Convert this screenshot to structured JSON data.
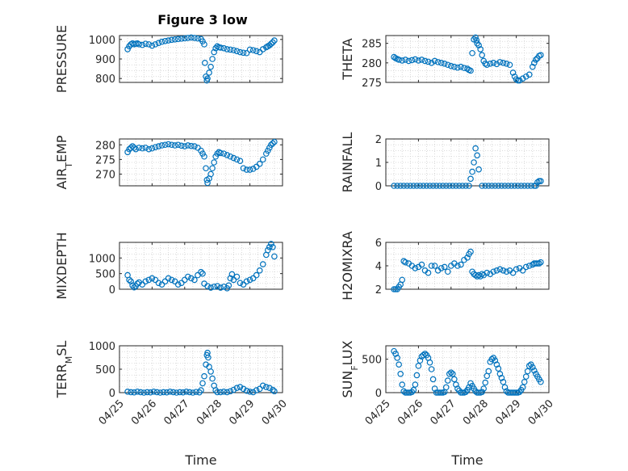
{
  "figure": {
    "title": "Figure 3 low"
  },
  "chart_data": [
    {
      "type": "scatter",
      "ylabel": "PRESSURE",
      "ylim": [
        780,
        1020
      ],
      "yticks": [
        "800",
        "900",
        "1000"
      ],
      "xlim": [
        0,
        5
      ],
      "xticks": [
        "04/25",
        "04/26",
        "04/27",
        "04/28",
        "04/29",
        "04/30"
      ],
      "x": [
        0.25,
        0.3,
        0.35,
        0.4,
        0.45,
        0.5,
        0.55,
        0.6,
        0.7,
        0.8,
        0.9,
        1.0,
        1.1,
        1.2,
        1.3,
        1.4,
        1.5,
        1.6,
        1.7,
        1.8,
        1.9,
        2.0,
        2.1,
        2.2,
        2.3,
        2.4,
        2.5,
        2.55,
        2.6,
        2.62,
        2.65,
        2.68,
        2.7,
        2.75,
        2.8,
        2.85,
        2.9,
        2.95,
        3.0,
        3.05,
        3.1,
        3.2,
        3.3,
        3.4,
        3.5,
        3.6,
        3.7,
        3.8,
        3.9,
        4.0,
        4.1,
        4.2,
        4.3,
        4.4,
        4.5,
        4.55,
        4.6,
        4.65,
        4.7,
        4.75
      ],
      "y": [
        950,
        965,
        975,
        980,
        975,
        978,
        980,
        975,
        972,
        978,
        975,
        968,
        975,
        982,
        988,
        992,
        995,
        998,
        1000,
        1002,
        1004,
        1006,
        1008,
        1010,
        1008,
        1005,
        1002,
        990,
        975,
        880,
        810,
        790,
        800,
        830,
        860,
        900,
        935,
        955,
        965,
        960,
        958,
        955,
        950,
        948,
        945,
        940,
        935,
        932,
        930,
        948,
        945,
        940,
        935,
        950,
        960,
        965,
        970,
        978,
        985,
        995
      ]
    },
    {
      "type": "scatter",
      "ylabel": "THETA",
      "ylim": [
        275,
        287
      ],
      "yticks": [
        "275",
        "280",
        "285"
      ],
      "xlim": [
        0,
        5
      ],
      "xticks": [
        "04/25",
        "04/26",
        "04/27",
        "04/28",
        "04/29",
        "04/30"
      ],
      "x": [
        0.25,
        0.3,
        0.35,
        0.4,
        0.5,
        0.6,
        0.7,
        0.8,
        0.9,
        1.0,
        1.1,
        1.2,
        1.3,
        1.4,
        1.5,
        1.6,
        1.7,
        1.8,
        1.9,
        2.0,
        2.1,
        2.2,
        2.3,
        2.4,
        2.5,
        2.55,
        2.6,
        2.65,
        2.7,
        2.75,
        2.78,
        2.8,
        2.85,
        2.9,
        2.95,
        3.0,
        3.05,
        3.1,
        3.2,
        3.3,
        3.4,
        3.5,
        3.6,
        3.7,
        3.8,
        3.9,
        3.95,
        4.0,
        4.05,
        4.1,
        4.2,
        4.3,
        4.4,
        4.5,
        4.55,
        4.6,
        4.65,
        4.7,
        4.75
      ],
      "y": [
        281.5,
        281.2,
        281.0,
        280.8,
        280.6,
        280.8,
        280.5,
        280.7,
        280.9,
        280.6,
        280.8,
        280.5,
        280.3,
        280.0,
        280.5,
        280.2,
        280.0,
        279.8,
        279.5,
        279.2,
        279.0,
        278.8,
        279.0,
        278.7,
        278.5,
        278.2,
        278.0,
        282.5,
        286.0,
        286.5,
        285.8,
        285.0,
        284.5,
        283.5,
        282.0,
        280.5,
        279.8,
        279.5,
        279.8,
        280.0,
        279.7,
        280.2,
        280.0,
        279.8,
        279.5,
        277.5,
        276.5,
        275.8,
        275.5,
        275.5,
        276.0,
        276.5,
        277.0,
        279.0,
        280.0,
        280.8,
        281.2,
        281.8,
        282.0
      ]
    },
    {
      "type": "scatter",
      "ylabel": "AIR_TEMP",
      "ylim": [
        266,
        282
      ],
      "yticks": [
        "270",
        "275",
        "280"
      ],
      "xlim": [
        0,
        5
      ],
      "xticks": [
        "04/25",
        "04/26",
        "04/27",
        "04/28",
        "04/29",
        "04/30"
      ],
      "x": [
        0.25,
        0.3,
        0.35,
        0.4,
        0.45,
        0.5,
        0.6,
        0.7,
        0.8,
        0.9,
        1.0,
        1.1,
        1.2,
        1.3,
        1.4,
        1.5,
        1.6,
        1.7,
        1.8,
        1.9,
        2.0,
        2.1,
        2.2,
        2.3,
        2.4,
        2.5,
        2.55,
        2.6,
        2.65,
        2.68,
        2.7,
        2.75,
        2.8,
        2.85,
        2.9,
        2.95,
        3.0,
        3.05,
        3.1,
        3.2,
        3.3,
        3.4,
        3.5,
        3.6,
        3.7,
        3.8,
        3.9,
        4.0,
        4.1,
        4.2,
        4.3,
        4.4,
        4.5,
        4.55,
        4.6,
        4.65,
        4.7,
        4.75
      ],
      "y": [
        277.5,
        278.5,
        279.0,
        279.5,
        279.0,
        278.5,
        279.0,
        278.8,
        279.0,
        278.5,
        278.8,
        279.2,
        279.5,
        279.8,
        280.0,
        280.2,
        280.0,
        279.8,
        280.0,
        279.7,
        279.5,
        279.8,
        279.6,
        279.5,
        279.0,
        278.0,
        277.0,
        276.0,
        272.0,
        268.0,
        267.0,
        268.5,
        270.0,
        272.0,
        274.0,
        276.0,
        277.0,
        277.5,
        277.2,
        277.0,
        276.5,
        276.0,
        275.5,
        275.0,
        274.5,
        272.0,
        271.5,
        271.5,
        271.8,
        272.5,
        273.5,
        275.0,
        277.0,
        278.0,
        279.0,
        280.0,
        280.5,
        281.0
      ]
    },
    {
      "type": "scatter",
      "ylabel": "RAINFALL",
      "ylim": [
        0,
        2
      ],
      "yticks": [
        "0",
        "1",
        "2"
      ],
      "xlim": [
        0,
        5
      ],
      "xticks": [
        "04/25",
        "04/26",
        "04/27",
        "04/28",
        "04/29",
        "04/30"
      ],
      "x": [
        0.25,
        0.35,
        0.45,
        0.55,
        0.65,
        0.75,
        0.85,
        0.95,
        1.05,
        1.15,
        1.25,
        1.35,
        1.45,
        1.55,
        1.65,
        1.75,
        1.85,
        1.95,
        2.05,
        2.15,
        2.25,
        2.35,
        2.45,
        2.55,
        2.6,
        2.65,
        2.7,
        2.75,
        2.8,
        2.85,
        2.95,
        3.05,
        3.15,
        3.25,
        3.35,
        3.45,
        3.55,
        3.65,
        3.75,
        3.85,
        3.95,
        4.05,
        4.15,
        4.25,
        4.35,
        4.45,
        4.55,
        4.6,
        4.65,
        4.7,
        4.75
      ],
      "y": [
        0,
        0,
        0,
        0,
        0,
        0,
        0,
        0,
        0,
        0,
        0,
        0,
        0,
        0,
        0,
        0,
        0,
        0,
        0,
        0,
        0,
        0,
        0,
        0,
        0.3,
        0.6,
        1.0,
        1.6,
        1.3,
        0.7,
        0,
        0,
        0,
        0,
        0,
        0,
        0,
        0,
        0,
        0,
        0,
        0,
        0,
        0,
        0,
        0,
        0,
        0,
        0.15,
        0.2,
        0.2
      ]
    },
    {
      "type": "scatter",
      "ylabel": "MIXDEPTH",
      "ylim": [
        0,
        1500
      ],
      "yticks": [
        "0",
        "500",
        "1000"
      ],
      "xlim": [
        0,
        5
      ],
      "xticks": [
        "04/25",
        "04/26",
        "04/27",
        "04/28",
        "04/29",
        "04/30"
      ],
      "x": [
        0.25,
        0.3,
        0.35,
        0.4,
        0.45,
        0.5,
        0.55,
        0.6,
        0.7,
        0.8,
        0.9,
        1.0,
        1.1,
        1.2,
        1.3,
        1.4,
        1.5,
        1.6,
        1.7,
        1.8,
        1.9,
        2.0,
        2.1,
        2.2,
        2.3,
        2.4,
        2.5,
        2.55,
        2.6,
        2.7,
        2.8,
        2.9,
        3.0,
        3.1,
        3.2,
        3.3,
        3.35,
        3.4,
        3.45,
        3.5,
        3.6,
        3.7,
        3.8,
        3.9,
        4.0,
        4.1,
        4.2,
        4.3,
        4.4,
        4.5,
        4.55,
        4.6,
        4.65,
        4.7,
        4.75
      ],
      "y": [
        450,
        300,
        250,
        120,
        60,
        100,
        180,
        220,
        150,
        250,
        300,
        350,
        300,
        200,
        150,
        250,
        350,
        300,
        250,
        150,
        200,
        300,
        400,
        350,
        300,
        450,
        550,
        500,
        180,
        100,
        50,
        80,
        100,
        50,
        80,
        30,
        120,
        350,
        480,
        300,
        400,
        200,
        150,
        250,
        300,
        350,
        450,
        600,
        800,
        1100,
        1250,
        1350,
        1450,
        1350,
        1050
      ]
    },
    {
      "type": "scatter",
      "ylabel": "H2OMIXRA",
      "ylim": [
        2,
        6
      ],
      "yticks": [
        "2",
        "4",
        "6"
      ],
      "xlim": [
        0,
        5
      ],
      "xticks": [
        "04/25",
        "04/26",
        "04/27",
        "04/28",
        "04/29",
        "04/30"
      ],
      "x": [
        0.25,
        0.3,
        0.35,
        0.4,
        0.45,
        0.5,
        0.55,
        0.6,
        0.7,
        0.8,
        0.9,
        1.0,
        1.1,
        1.2,
        1.3,
        1.4,
        1.5,
        1.6,
        1.7,
        1.8,
        1.9,
        2.0,
        2.1,
        2.2,
        2.3,
        2.4,
        2.5,
        2.55,
        2.6,
        2.65,
        2.7,
        2.75,
        2.8,
        2.85,
        2.9,
        2.95,
        3.0,
        3.1,
        3.2,
        3.3,
        3.4,
        3.5,
        3.6,
        3.7,
        3.8,
        3.9,
        4.0,
        4.1,
        4.2,
        4.3,
        4.4,
        4.5,
        4.55,
        4.6,
        4.65,
        4.7,
        4.75
      ],
      "y": [
        2.0,
        2.0,
        2.0,
        2.2,
        2.4,
        2.8,
        4.4,
        4.3,
        4.2,
        4.0,
        3.8,
        3.9,
        4.1,
        3.6,
        3.4,
        4.0,
        4.0,
        3.6,
        3.8,
        3.9,
        3.5,
        4.0,
        4.2,
        4.0,
        4.1,
        4.5,
        4.7,
        5.0,
        5.2,
        3.5,
        3.3,
        3.2,
        3.1,
        3.2,
        3.1,
        3.3,
        3.2,
        3.4,
        3.3,
        3.5,
        3.6,
        3.7,
        3.6,
        3.5,
        3.6,
        3.4,
        3.7,
        3.8,
        3.6,
        3.9,
        4.0,
        4.1,
        4.2,
        4.2,
        4.2,
        4.2,
        4.3
      ]
    },
    {
      "type": "scatter",
      "ylabel": "TERR_MSL",
      "ylim": [
        0,
        1000
      ],
      "yticks": [
        "0",
        "500",
        "1000"
      ],
      "xlim": [
        0,
        5
      ],
      "xticks": [
        "04/25",
        "04/26",
        "04/27",
        "04/28",
        "04/29",
        "04/30"
      ],
      "x": [
        0.25,
        0.35,
        0.45,
        0.55,
        0.65,
        0.75,
        0.85,
        0.95,
        1.05,
        1.15,
        1.25,
        1.35,
        1.45,
        1.55,
        1.65,
        1.75,
        1.85,
        1.95,
        2.05,
        2.15,
        2.25,
        2.35,
        2.45,
        2.5,
        2.55,
        2.6,
        2.65,
        2.68,
        2.7,
        2.72,
        2.75,
        2.8,
        2.85,
        2.9,
        2.95,
        3.0,
        3.1,
        3.2,
        3.3,
        3.4,
        3.5,
        3.6,
        3.7,
        3.8,
        3.9,
        4.0,
        4.1,
        4.2,
        4.3,
        4.4,
        4.5,
        4.6,
        4.7,
        4.75
      ],
      "y": [
        20,
        10,
        5,
        20,
        10,
        0,
        10,
        5,
        20,
        10,
        0,
        10,
        5,
        20,
        10,
        0,
        10,
        5,
        20,
        10,
        0,
        15,
        5,
        50,
        200,
        350,
        600,
        800,
        850,
        750,
        550,
        450,
        300,
        150,
        50,
        10,
        10,
        20,
        10,
        30,
        60,
        100,
        120,
        80,
        40,
        20,
        10,
        50,
        80,
        150,
        120,
        100,
        60,
        30
      ]
    },
    {
      "type": "scatter",
      "ylabel": "SUN_FLUX",
      "ylim": [
        0,
        700
      ],
      "yticks": [
        "0",
        "500"
      ],
      "xlim": [
        0,
        5
      ],
      "xticks": [
        "04/25",
        "04/26",
        "04/27",
        "04/28",
        "04/29",
        "04/30"
      ],
      "x": [
        0.25,
        0.3,
        0.35,
        0.4,
        0.45,
        0.5,
        0.55,
        0.6,
        0.65,
        0.7,
        0.75,
        0.8,
        0.85,
        0.9,
        0.95,
        1.0,
        1.05,
        1.1,
        1.15,
        1.2,
        1.25,
        1.3,
        1.35,
        1.4,
        1.45,
        1.5,
        1.55,
        1.6,
        1.65,
        1.7,
        1.75,
        1.8,
        1.85,
        1.9,
        1.95,
        2.0,
        2.05,
        2.1,
        2.15,
        2.2,
        2.25,
        2.3,
        2.35,
        2.4,
        2.45,
        2.5,
        2.55,
        2.6,
        2.65,
        2.7,
        2.75,
        2.8,
        2.85,
        2.9,
        2.95,
        3.0,
        3.05,
        3.1,
        3.15,
        3.2,
        3.25,
        3.3,
        3.35,
        3.4,
        3.45,
        3.5,
        3.55,
        3.6,
        3.65,
        3.7,
        3.75,
        3.8,
        3.85,
        3.9,
        3.95,
        4.0,
        4.05,
        4.1,
        4.15,
        4.2,
        4.25,
        4.3,
        4.35,
        4.4,
        4.45,
        4.5,
        4.55,
        4.6,
        4.65,
        4.7,
        4.75
      ],
      "y": [
        620,
        580,
        520,
        420,
        280,
        120,
        20,
        0,
        0,
        0,
        0,
        10,
        40,
        120,
        260,
        400,
        480,
        540,
        560,
        580,
        560,
        520,
        450,
        350,
        200,
        60,
        0,
        0,
        0,
        0,
        0,
        10,
        80,
        180,
        280,
        300,
        280,
        200,
        120,
        60,
        30,
        0,
        0,
        0,
        10,
        40,
        80,
        140,
        100,
        60,
        20,
        0,
        0,
        0,
        10,
        60,
        150,
        250,
        320,
        460,
        500,
        520,
        480,
        420,
        360,
        280,
        220,
        160,
        80,
        20,
        0,
        0,
        0,
        0,
        0,
        0,
        0,
        10,
        40,
        80,
        160,
        240,
        320,
        400,
        420,
        380,
        330,
        280,
        240,
        200,
        160
      ]
    }
  ],
  "xaxis_label": "Time"
}
